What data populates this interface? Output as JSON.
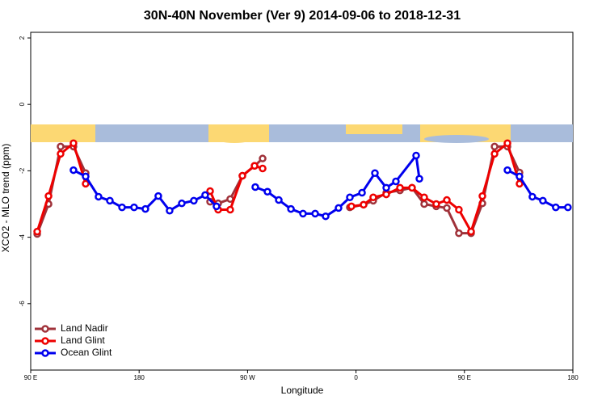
{
  "chart_data": {
    "type": "line",
    "title": "30N-40N November (Ver 9)   2014-09-06 to 2018-12-31",
    "x_label": "Longitude",
    "y_label": "XCO2 - MLO trend (ppm)",
    "xlim": [
      90,
      540
    ],
    "ylim": [
      -8,
      2.17
    ],
    "xticks": [
      {
        "value": 90,
        "label": "90 E"
      },
      180,
      {
        "value": 270,
        "label": "90 W"
      },
      {
        "value": 360,
        "label": "0"
      },
      {
        "value": 450,
        "label": "90 E"
      },
      {
        "value": 540,
        "label": "180"
      }
    ],
    "yticks": [
      2,
      0,
      -2,
      -4,
      -6
    ],
    "legend": "bottom-left",
    "series": [
      {
        "name": "Land Nadir",
        "color": "#a0323a",
        "x": [
          95.4,
          104.8,
          114.8,
          125.5,
          135.6,
          null,
          238.9,
          245.6,
          255.6,
          265.7,
          275.8,
          282.5,
          null,
          354.9,
          366.3,
          374.3,
          385.1,
          396.5,
          406.5,
          416.6,
          426.6,
          435.4,
          445.4,
          455.5,
          464.9,
          475.0,
          485.7,
          495.7
        ],
        "values": [
          -3.9,
          -3.0,
          -1.27,
          -1.27,
          -2.07,
          null,
          -2.93,
          -2.98,
          -2.85,
          -2.15,
          -1.85,
          -1.63,
          null,
          -3.1,
          -3.02,
          -2.9,
          -2.66,
          -2.59,
          -2.51,
          -3.0,
          -3.07,
          -3.12,
          -3.88,
          -3.88,
          -2.98,
          -1.27,
          -1.27,
          -2.05
        ]
      },
      {
        "name": "Land Glint",
        "color": "#ee0000",
        "x": [
          95.4,
          104.8,
          114.8,
          125.5,
          135.6,
          null,
          238.9,
          245.6,
          255.6,
          265.7,
          275.8,
          282.5,
          null,
          356.2,
          366.3,
          374.3,
          385.1,
          396.5,
          406.5,
          416.6,
          426.6,
          435.4,
          445.4,
          455.5,
          464.9,
          475.0,
          485.7,
          495.7
        ],
        "values": [
          -3.83,
          -2.76,
          -1.49,
          -1.17,
          -2.39,
          null,
          -2.61,
          -3.17,
          -3.17,
          -2.15,
          -1.85,
          -1.93,
          null,
          -3.07,
          -3.02,
          -2.8,
          -2.71,
          -2.51,
          -2.51,
          -2.8,
          -3.0,
          -2.88,
          -3.17,
          -3.83,
          -2.76,
          -1.49,
          -1.17,
          -2.39
        ]
      },
      {
        "name": "Ocean Glint",
        "color": "#0000ee",
        "x": [
          125.5,
          135.6,
          146.3,
          155.7,
          165.8,
          175.8,
          185.2,
          195.9,
          205.3,
          215.4,
          225.4,
          234.8,
          244.2,
          null,
          276.4,
          286.5,
          295.9,
          306.0,
          316.0,
          326.1,
          334.8,
          345.5,
          354.9,
          365.0,
          375.7,
          385.1,
          393.1,
          409.9,
          412.6,
          null,
          485.7,
          495.7,
          506.4,
          515.1,
          525.8,
          535.9
        ],
        "values": [
          -1.98,
          -2.17,
          -2.78,
          -2.9,
          -3.1,
          -3.1,
          -3.15,
          -2.76,
          -3.2,
          -2.98,
          -2.9,
          -2.73,
          -3.07,
          null,
          -2.49,
          -2.63,
          -2.88,
          -3.15,
          -3.29,
          -3.29,
          -3.37,
          -3.12,
          -2.8,
          -2.66,
          -2.07,
          -2.51,
          -2.32,
          -1.54,
          -2.24,
          null,
          -1.98,
          -2.17,
          -2.78,
          -2.9,
          -3.1,
          -3.1
        ]
      }
    ]
  }
}
